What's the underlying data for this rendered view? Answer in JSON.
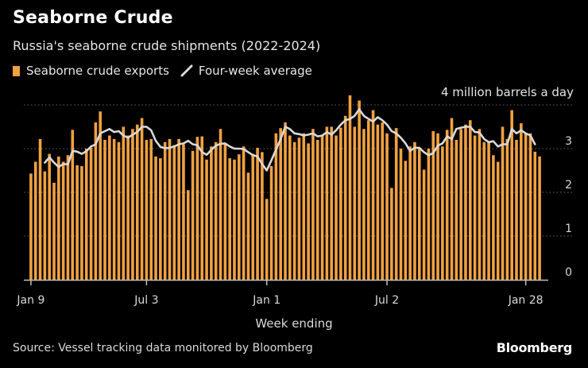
{
  "header": {
    "title": "Seaborne Crude",
    "subtitle": "Russia's seaborne crude shipments (2022-2024)"
  },
  "legend": {
    "bar_label": "Seaborne crude exports",
    "line_label": "Four-week average"
  },
  "footer": {
    "source": "Source: Vessel tracking data monitored by Bloomberg",
    "brand": "Bloomberg"
  },
  "colors": {
    "bar": "#F0A141",
    "line": "#D9D9D9",
    "grid": "#666666",
    "axis": "#BFBFBF",
    "background": "#000000"
  },
  "chart_data": {
    "type": "bar",
    "title": "Seaborne Crude",
    "subtitle": "Russia's seaborne crude shipments (2022-2024)",
    "xlabel": "Week ending",
    "ylabel": "",
    "y_unit_label": "4 million barrels a day",
    "ylim": [
      0,
      4
    ],
    "y_ticks": [
      0,
      1,
      2,
      3,
      4
    ],
    "y_tick_labels": [
      "0",
      "1",
      "2",
      "3",
      ""
    ],
    "x_tick_labels": [
      "Jan 9",
      "Jul 3",
      "Jan 1",
      "Jul 2",
      "Jan 28"
    ],
    "x_tick_index": [
      0,
      25,
      51,
      77,
      107
    ],
    "legend_position": "top-left",
    "grid": "horizontal dotted",
    "series": [
      {
        "name": "Seaborne crude exports",
        "kind": "bar",
        "values": [
          2.43,
          2.7,
          3.22,
          2.48,
          2.88,
          2.22,
          2.82,
          2.7,
          2.85,
          3.43,
          2.62,
          2.6,
          3.0,
          3.02,
          3.6,
          3.85,
          3.2,
          3.3,
          3.22,
          3.15,
          3.5,
          3.3,
          3.45,
          3.55,
          3.7,
          3.2,
          3.22,
          2.82,
          2.78,
          3.15,
          3.22,
          3.08,
          3.22,
          3.1,
          2.05,
          2.95,
          3.27,
          3.28,
          2.75,
          3.05,
          3.15,
          3.45,
          3.1,
          2.78,
          2.75,
          2.87,
          3.05,
          2.45,
          2.88,
          3.02,
          2.92,
          1.85,
          2.6,
          3.35,
          3.47,
          3.6,
          3.3,
          3.15,
          3.25,
          3.35,
          3.12,
          3.45,
          3.2,
          3.3,
          3.5,
          3.5,
          3.3,
          3.48,
          3.75,
          4.22,
          3.5,
          4.1,
          3.45,
          3.65,
          3.88,
          3.55,
          3.6,
          3.35,
          2.1,
          3.47,
          3.0,
          2.72,
          3.05,
          3.15,
          3.0,
          2.52,
          3.0,
          3.4,
          3.35,
          3.05,
          3.43,
          3.7,
          3.2,
          3.45,
          3.55,
          3.65,
          3.3,
          3.45,
          3.15,
          3.15,
          2.85,
          2.7,
          3.5,
          3.22,
          3.88,
          3.2,
          3.58,
          3.35,
          3.35,
          2.93,
          2.82
        ]
      },
      {
        "name": "Four-week average",
        "kind": "line",
        "values": [
          null,
          null,
          null,
          2.68,
          2.8,
          2.68,
          2.58,
          2.65,
          2.64,
          2.95,
          2.93,
          2.88,
          2.94,
          3.05,
          3.1,
          3.35,
          3.4,
          3.45,
          3.38,
          3.4,
          3.3,
          3.25,
          3.32,
          3.38,
          3.5,
          3.5,
          3.42,
          3.18,
          3.04,
          3.01,
          3.02,
          3.05,
          3.1,
          3.12,
          3.18,
          3.1,
          3.08,
          2.92,
          2.86,
          2.97,
          3.07,
          3.11,
          3.12,
          3.05,
          3.0,
          3.0,
          2.99,
          2.92,
          2.85,
          2.82,
          2.65,
          2.5,
          2.73,
          2.98,
          3.22,
          3.5,
          3.45,
          3.35,
          3.33,
          3.3,
          3.32,
          3.35,
          3.28,
          3.3,
          3.38,
          3.32,
          3.42,
          3.55,
          3.65,
          3.68,
          3.75,
          3.9,
          3.75,
          3.68,
          3.62,
          3.72,
          3.65,
          3.55,
          3.4,
          3.35,
          3.25,
          3.12,
          2.95,
          3.02,
          3.02,
          2.92,
          2.85,
          2.9,
          3.07,
          3.12,
          3.28,
          3.22,
          3.45,
          3.48,
          3.5,
          3.5,
          3.38,
          3.37,
          3.22,
          3.15,
          3.17,
          3.05,
          3.1,
          3.1,
          3.45,
          3.35,
          3.42,
          3.35,
          3.3,
          3.1
        ]
      }
    ]
  }
}
